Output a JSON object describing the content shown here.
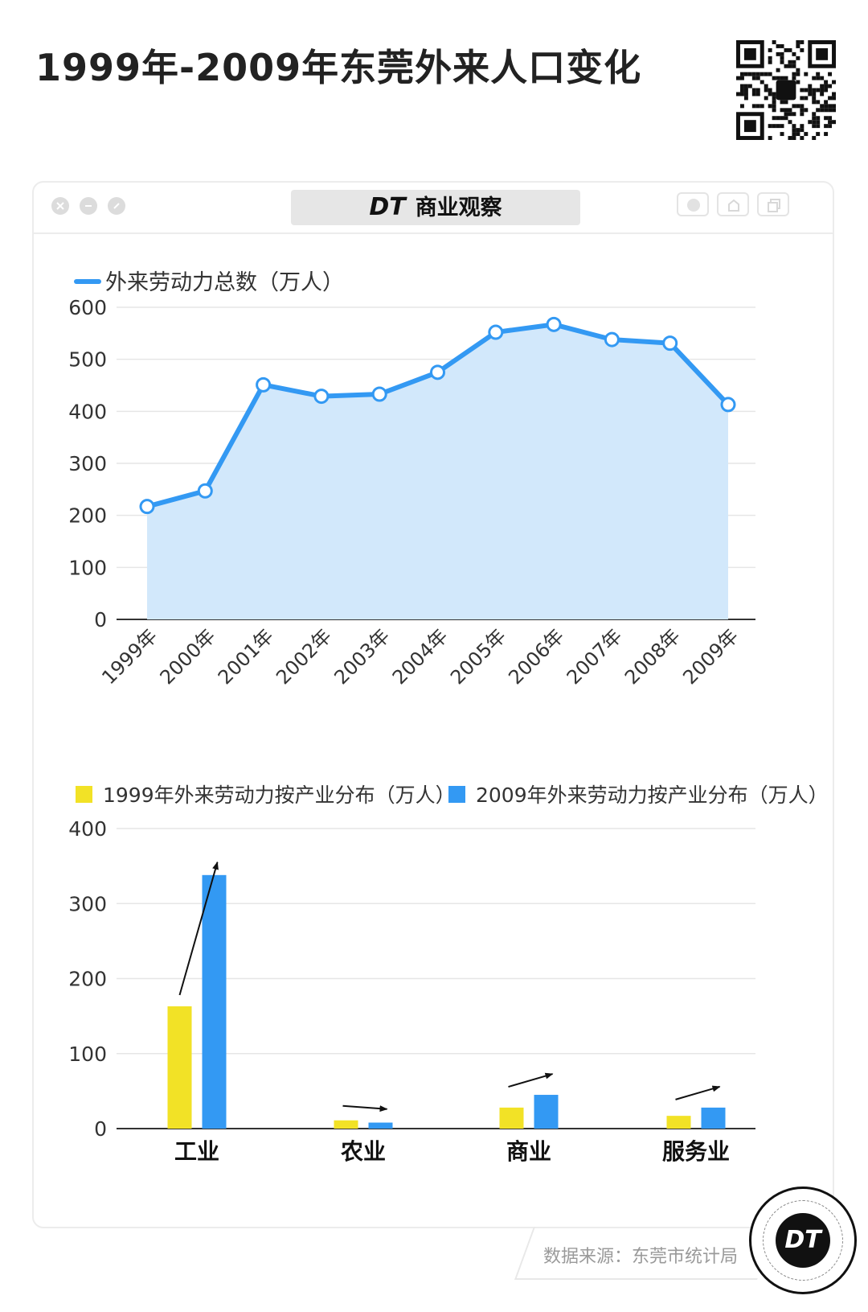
{
  "title": "1999年-2009年东莞外来人口变化",
  "window": {
    "brand_logo": "DT",
    "brand_title": "商业观察"
  },
  "source": "数据来源：东莞市统计局",
  "badge_logo": "DT",
  "icons": [
    "qr-code-icon",
    "close-icon",
    "minimize-icon",
    "zoom-icon",
    "record-icon",
    "share-icon",
    "copy-icon",
    "dt-badge-icon"
  ],
  "colors": {
    "line": "#3399f3",
    "area": "#d2e8fb",
    "bar1999": "#f2e226",
    "bar2009": "#3399f3",
    "grid": "#e6e6e6"
  },
  "chart_data": [
    {
      "type": "line",
      "legend": "外来劳动力总数（万人）",
      "x": [
        "1999年",
        "2000年",
        "2001年",
        "2002年",
        "2003年",
        "2004年",
        "2005年",
        "2006年",
        "2007年",
        "2008年",
        "2009年"
      ],
      "values": [
        217,
        247,
        451,
        429,
        433,
        475,
        552,
        567,
        538,
        531,
        413
      ],
      "ylim": [
        0,
        600
      ],
      "yticks": [
        0,
        100,
        200,
        300,
        400,
        500,
        600
      ],
      "grid": true,
      "fill": true,
      "legend_position": "top-left"
    },
    {
      "type": "bar",
      "categories": [
        "工业",
        "农业",
        "商业",
        "服务业"
      ],
      "series": [
        {
          "name": "1999年外来劳动力按产业分布（万人）",
          "values": [
            163,
            11,
            28,
            17
          ]
        },
        {
          "name": "2009年外来劳动力按产业分布（万人）",
          "values": [
            338,
            8,
            45,
            28
          ]
        }
      ],
      "ylim": [
        0,
        400
      ],
      "yticks": [
        0,
        100,
        200,
        300,
        400
      ],
      "grid": true,
      "legend_position": "top"
    }
  ]
}
